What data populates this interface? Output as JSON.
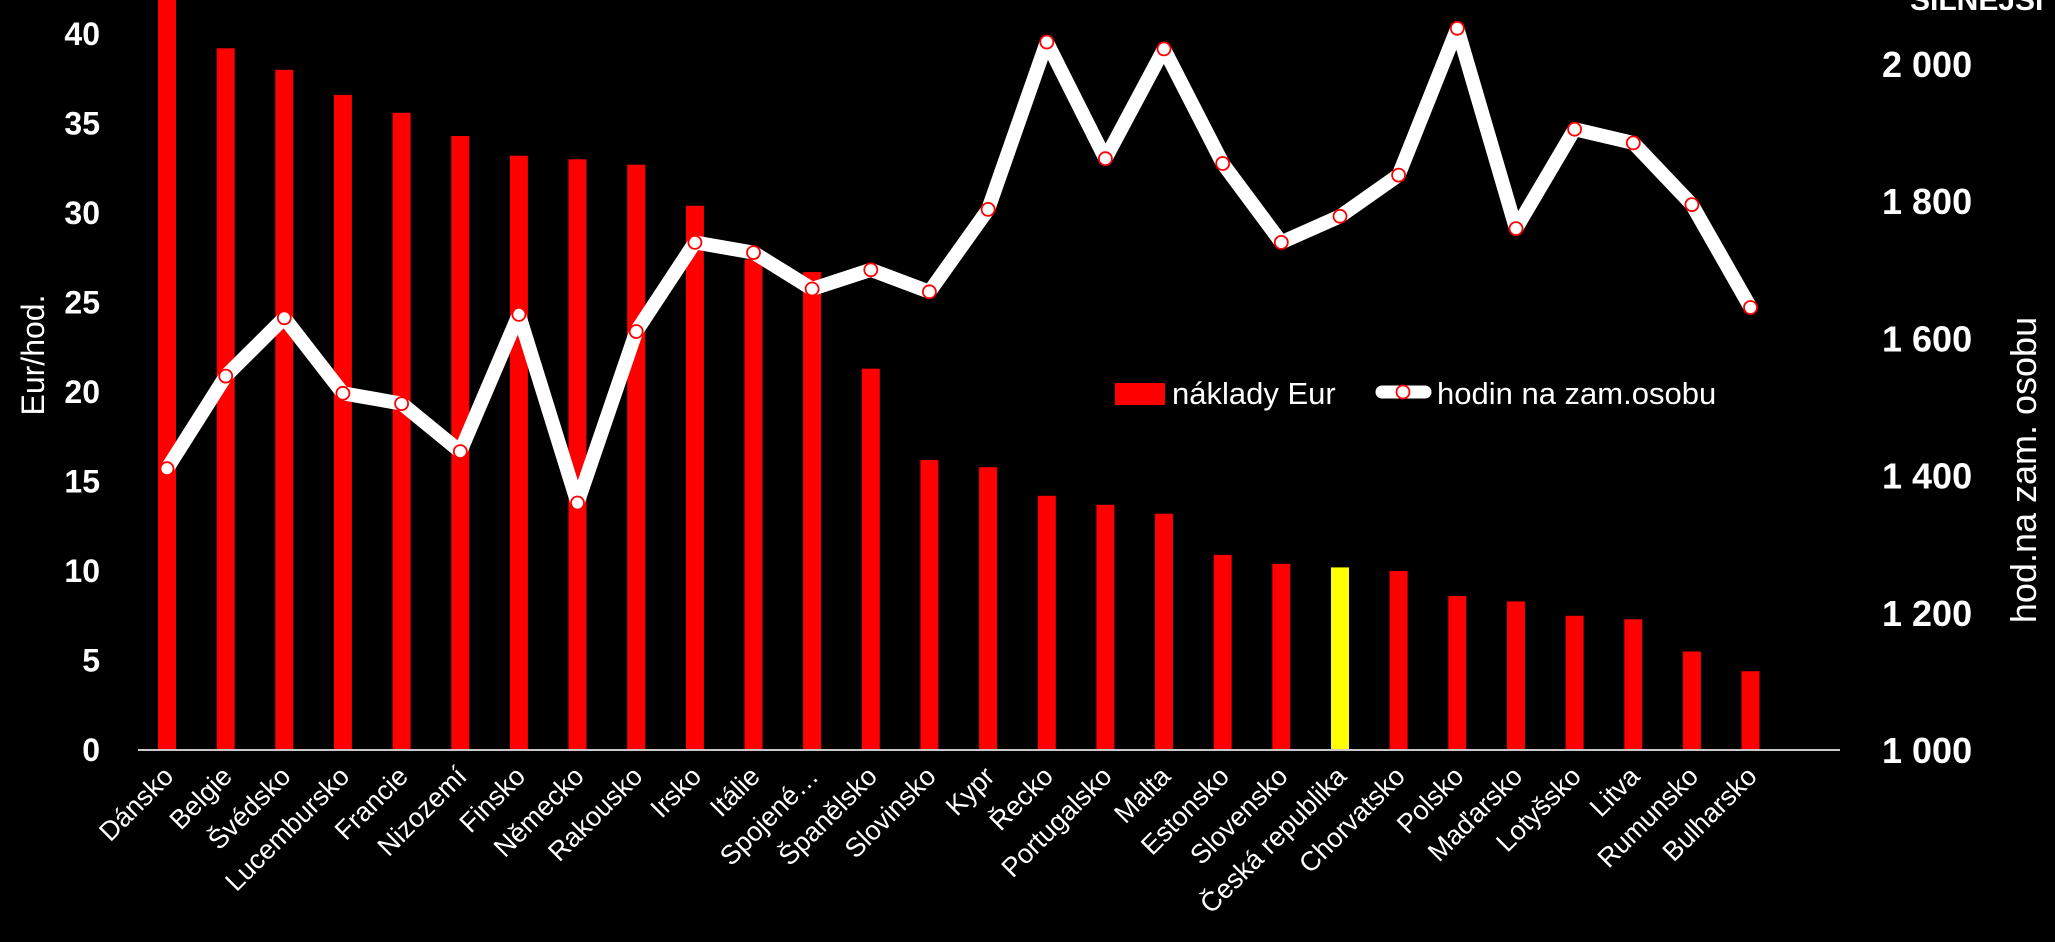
{
  "chart_data": {
    "type": "bar",
    "categories": [
      "Dánsko",
      "Belgie",
      "Švédsko",
      "Lucembursko",
      "Francie",
      "Nizozemí",
      "Finsko",
      "Německo",
      "Rakousko",
      "Irsko",
      "Itálie",
      "Spojené…",
      "Španělsko",
      "Slovinsko",
      "Kypr",
      "Řecko",
      "Portugalsko",
      "Malta",
      "Estonsko",
      "Slovensko",
      "Česká republika",
      "Chorvatsko",
      "Polsko",
      "Maďarsko",
      "Lotyšsko",
      "Litva",
      "Rumunsko",
      "Bulharsko"
    ],
    "series": [
      {
        "name": "náklady Eur",
        "type": "bar",
        "axis": "left",
        "color": "#ff0000",
        "highlight_color": "#ffff00",
        "highlight_category": "Česká republika",
        "values": [
          43.5,
          39.2,
          38.0,
          36.6,
          35.6,
          34.3,
          33.2,
          33.0,
          32.7,
          30.4,
          27.4,
          26.7,
          21.3,
          16.2,
          15.8,
          14.2,
          13.7,
          13.2,
          10.9,
          10.4,
          10.2,
          10.0,
          8.6,
          8.3,
          7.5,
          7.3,
          5.5,
          4.4
        ]
      },
      {
        "name": "hodin na zam.osobu",
        "type": "line",
        "axis": "right",
        "color": "#ffffff",
        "marker_color": "#ff0000",
        "values": [
          1410,
          1545,
          1630,
          1520,
          1505,
          1435,
          1635,
          1360,
          1610,
          1740,
          1725,
          1672,
          1700,
          1668,
          1788,
          2032,
          1862,
          2022,
          1855,
          1740,
          1778,
          1838,
          2052,
          1760,
          1905,
          1885,
          1795,
          1645
        ]
      }
    ],
    "left_axis": {
      "title": "Eur/hod.",
      "range": [
        0,
        42
      ],
      "ticks": [
        "0",
        "5",
        "10",
        "15",
        "20",
        "25",
        "30",
        "35",
        "40"
      ]
    },
    "right_axis": {
      "title": "hod.na zam. osobu",
      "range": [
        1000,
        2100
      ],
      "ticks": [
        "1 000",
        "1 200",
        "1 400",
        "1 600",
        "1 800",
        "2 000"
      ]
    },
    "legend": {
      "placement": "center-right",
      "bar_label": "náklady Eur",
      "line_label": "hodin na zam.osobu"
    },
    "corner_text": "SILNĚJŠÍ",
    "grid": false
  }
}
